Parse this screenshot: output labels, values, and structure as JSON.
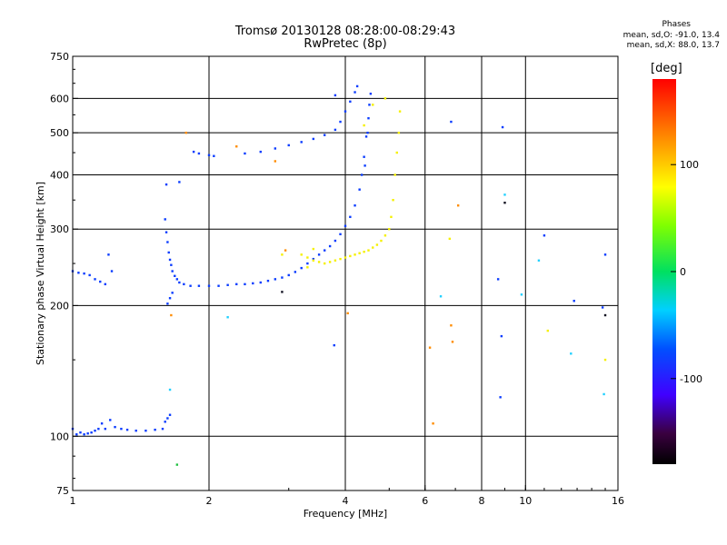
{
  "header": {
    "title_line1": "Tromsø 20130128 08:28:00-08:29:43",
    "title_line2": "RwPretec (8p)"
  },
  "phases": {
    "title": "Phases",
    "o_label": "mean, sd,O: -91.0, 13.4",
    "x_label": "mean, sd,X:  88.0, 13.7"
  },
  "colorbar": {
    "unit": "[deg]",
    "ticks": [
      {
        "value": 100,
        "label": "100"
      },
      {
        "value": 0,
        "label": "0"
      },
      {
        "value": -100,
        "label": "-100"
      }
    ],
    "range": [
      -180,
      180
    ]
  },
  "chart_data": {
    "type": "scatter",
    "title": "Tromsø 20130128 08:28:00-08:29:43",
    "subtitle": "RwPretec (8p)",
    "xlabel": "Frequency [MHz]",
    "ylabel": "Stationary phase Virtual Height [km]",
    "xscale": "log",
    "yscale": "log",
    "xlim": [
      1,
      16
    ],
    "ylim": [
      75,
      750
    ],
    "x_ticks": [
      {
        "value": 1,
        "label": "1"
      },
      {
        "value": 2,
        "label": "2"
      },
      {
        "value": 4,
        "label": "4"
      },
      {
        "value": 6,
        "label": "6"
      },
      {
        "value": 8,
        "label": "8"
      },
      {
        "value": 10,
        "label": "10"
      },
      {
        "value": 16,
        "label": "16"
      }
    ],
    "y_ticks": [
      {
        "value": 75,
        "label": "75"
      },
      {
        "value": 100,
        "label": "100"
      },
      {
        "value": 200,
        "label": "200"
      },
      {
        "value": 300,
        "label": "300"
      },
      {
        "value": 400,
        "label": "400"
      },
      {
        "value": 500,
        "label": "500"
      },
      {
        "value": 600,
        "label": "600"
      },
      {
        "value": 750,
        "label": "750"
      }
    ],
    "x_grid": [
      2,
      4,
      6,
      8,
      10
    ],
    "y_grid": [
      100,
      200,
      300,
      400,
      500,
      600
    ],
    "grid": true,
    "series": [
      {
        "color": "#0a3cff",
        "points": [
          [
            1.0,
            104
          ],
          [
            1.02,
            101
          ],
          [
            1.04,
            102
          ],
          [
            1.06,
            101
          ],
          [
            1.08,
            101.5
          ],
          [
            1.1,
            102
          ],
          [
            1.12,
            103
          ],
          [
            1.14,
            104
          ],
          [
            1.16,
            107
          ],
          [
            1.18,
            104
          ],
          [
            1.21,
            109
          ],
          [
            1.24,
            105
          ],
          [
            1.28,
            104
          ],
          [
            1.32,
            103.5
          ],
          [
            1.38,
            103
          ],
          [
            1.45,
            103
          ],
          [
            1.52,
            103.5
          ],
          [
            1.58,
            104
          ],
          [
            1.6,
            108
          ],
          [
            1.62,
            110
          ],
          [
            1.64,
            112
          ],
          [
            1.0,
            240
          ],
          [
            1.03,
            238
          ],
          [
            1.06,
            237
          ],
          [
            1.09,
            235
          ],
          [
            1.12,
            230
          ],
          [
            1.15,
            227
          ],
          [
            1.18,
            224
          ],
          [
            1.2,
            262
          ],
          [
            1.22,
            240
          ],
          [
            1.6,
            316
          ],
          [
            1.61,
            295
          ],
          [
            1.62,
            280
          ],
          [
            1.63,
            265
          ],
          [
            1.64,
            255
          ],
          [
            1.65,
            248
          ],
          [
            1.66,
            240
          ],
          [
            1.68,
            234
          ],
          [
            1.7,
            230
          ],
          [
            1.72,
            226
          ],
          [
            1.76,
            224
          ],
          [
            1.82,
            222
          ],
          [
            1.9,
            222
          ],
          [
            2.0,
            222
          ],
          [
            2.1,
            222
          ],
          [
            2.2,
            223
          ],
          [
            2.3,
            224
          ],
          [
            2.4,
            224
          ],
          [
            2.5,
            225
          ],
          [
            2.6,
            226
          ],
          [
            2.7,
            228
          ],
          [
            2.8,
            230
          ],
          [
            2.9,
            232
          ],
          [
            3.0,
            235
          ],
          [
            3.1,
            239
          ],
          [
            3.2,
            244
          ],
          [
            3.3,
            250
          ],
          [
            3.4,
            256
          ],
          [
            3.5,
            262
          ],
          [
            3.6,
            268
          ],
          [
            3.7,
            274
          ],
          [
            3.8,
            282
          ],
          [
            3.9,
            292
          ],
          [
            4.0,
            305
          ],
          [
            4.1,
            320
          ],
          [
            4.2,
            340
          ],
          [
            4.3,
            370
          ],
          [
            4.35,
            400
          ],
          [
            4.4,
            440
          ],
          [
            4.45,
            490
          ],
          [
            4.5,
            540
          ],
          [
            4.52,
            580
          ],
          [
            4.55,
            615
          ],
          [
            4.48,
            500
          ],
          [
            4.42,
            420
          ],
          [
            1.62,
            202
          ],
          [
            1.64,
            208
          ],
          [
            1.66,
            214
          ],
          [
            1.61,
            380
          ],
          [
            1.72,
            385
          ],
          [
            1.85,
            452
          ],
          [
            1.9,
            448
          ],
          [
            2.0,
            444
          ],
          [
            2.05,
            442
          ],
          [
            2.4,
            448
          ],
          [
            2.6,
            452
          ],
          [
            2.8,
            460
          ],
          [
            3.0,
            468
          ],
          [
            3.2,
            476
          ],
          [
            3.4,
            484
          ],
          [
            3.6,
            494
          ],
          [
            3.8,
            508
          ],
          [
            3.9,
            530
          ],
          [
            4.0,
            560
          ],
          [
            4.1,
            590
          ],
          [
            4.2,
            620
          ],
          [
            4.25,
            640
          ],
          [
            3.8,
            610
          ],
          [
            3.78,
            162
          ],
          [
            6.85,
            530
          ],
          [
            8.9,
            515
          ],
          [
            8.8,
            123
          ],
          [
            8.85,
            170
          ],
          [
            8.7,
            230
          ],
          [
            11.0,
            290
          ],
          [
            12.8,
            205
          ],
          [
            14.8,
            198
          ],
          [
            15.0,
            262
          ]
        ]
      },
      {
        "color": "#f5f000",
        "points": [
          [
            3.2,
            262
          ],
          [
            3.3,
            258
          ],
          [
            3.4,
            254
          ],
          [
            3.5,
            252
          ],
          [
            3.6,
            250
          ],
          [
            3.7,
            252
          ],
          [
            3.8,
            254
          ],
          [
            3.9,
            256
          ],
          [
            4.0,
            258
          ],
          [
            4.1,
            260
          ],
          [
            4.2,
            262
          ],
          [
            4.3,
            264
          ],
          [
            4.4,
            266
          ],
          [
            4.5,
            268
          ],
          [
            4.6,
            272
          ],
          [
            4.7,
            276
          ],
          [
            4.8,
            282
          ],
          [
            4.9,
            290
          ],
          [
            5.0,
            300
          ],
          [
            5.05,
            320
          ],
          [
            5.1,
            350
          ],
          [
            5.15,
            400
          ],
          [
            5.2,
            450
          ],
          [
            5.25,
            500
          ],
          [
            5.28,
            560
          ],
          [
            4.9,
            600
          ],
          [
            4.6,
            580
          ],
          [
            4.4,
            520
          ],
          [
            3.3,
            245
          ],
          [
            3.4,
            270
          ],
          [
            2.9,
            262
          ],
          [
            6.8,
            285
          ],
          [
            15.0,
            150
          ],
          [
            11.2,
            175
          ]
        ]
      },
      {
        "color": "#ff8c00",
        "points": [
          [
            1.78,
            500
          ],
          [
            1.65,
            190
          ],
          [
            2.3,
            465
          ],
          [
            2.8,
            430
          ],
          [
            2.95,
            268
          ],
          [
            4.05,
            192
          ],
          [
            6.15,
            160
          ],
          [
            6.25,
            107
          ],
          [
            6.85,
            180
          ],
          [
            6.9,
            165
          ],
          [
            7.1,
            340
          ]
        ]
      },
      {
        "color": "#20d0ff",
        "points": [
          [
            1.64,
            128
          ],
          [
            2.2,
            188
          ],
          [
            6.5,
            210
          ],
          [
            9.0,
            360
          ],
          [
            9.8,
            212
          ],
          [
            10.7,
            254
          ],
          [
            12.6,
            155
          ],
          [
            14.9,
            125
          ]
        ]
      },
      {
        "color": "#101020",
        "points": [
          [
            2.9,
            215
          ],
          [
            9.0,
            345
          ],
          [
            15.0,
            190
          ]
        ]
      },
      {
        "color": "#20c040",
        "points": [
          [
            1.7,
            86
          ]
        ]
      }
    ]
  }
}
